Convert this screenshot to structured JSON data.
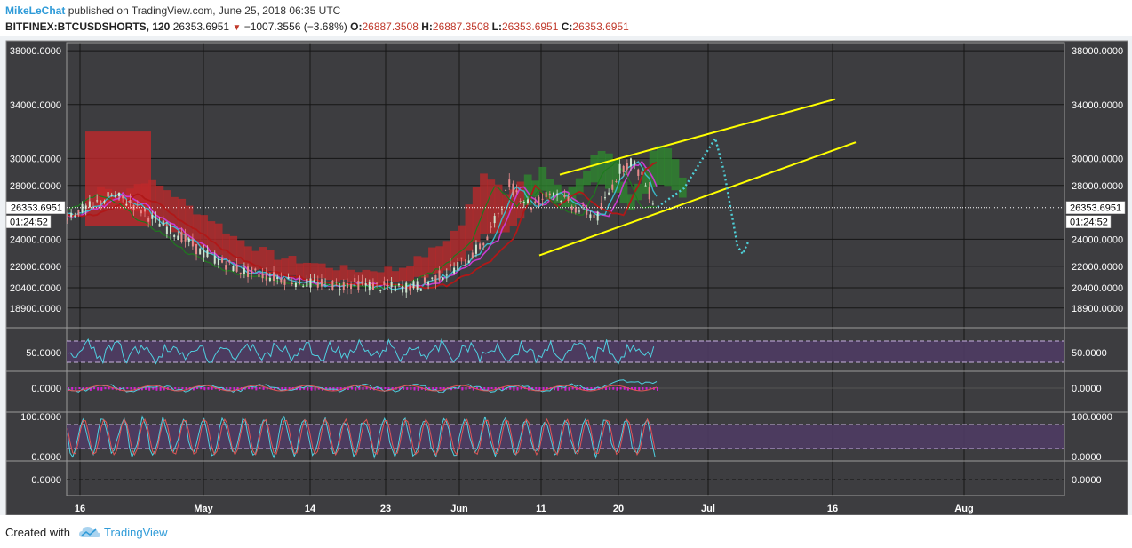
{
  "header": {
    "author": "MikeLeChat",
    "published_text": "published on TradingView.com, June 25, 2018 06:35 UTC",
    "symbol": "BITFINEX:BTCUSDSHORTS, 120",
    "last": "26353.6951",
    "change": "−1007.3556 (−3.68%)",
    "o_label": "O:",
    "o_value": "26887.3508",
    "h_label": "H:",
    "h_value": "26887.3508",
    "l_label": "L:",
    "l_value": "26353.6951",
    "c_label": "C:",
    "c_value": "26353.6951"
  },
  "footer": {
    "created_with": "Created with",
    "brand": "TradingView"
  },
  "colors": {
    "background": "#3d3d40",
    "grid": "#161616",
    "yellow": "#ffff00",
    "cyan_dotted": "#4fd0d8",
    "kumo_red": "#c0282a",
    "kumo_green": "#2e8b2e",
    "rsi_band": "#4e3b63"
  },
  "chart_data": {
    "type": "line",
    "x_tick_labels": [
      "16",
      "May",
      "14",
      "23",
      "Jun",
      "11",
      "20",
      "Jul",
      "16",
      "Aug"
    ],
    "price_axis_labels": [
      "38000.0000",
      "34000.0000",
      "30000.0000",
      "28000.0000",
      "24000.0000",
      "22000.0000",
      "20400.0000",
      "18900.0000"
    ],
    "price_range": [
      17500,
      38600
    ],
    "current_price_label": "26353.6951",
    "current_price": 26353.6951,
    "countdown_label": "01:24:52",
    "series": [
      {
        "x": [
          0,
          3,
          6,
          9,
          12,
          15,
          18,
          21,
          24,
          27,
          30,
          33,
          36,
          39,
          42,
          45,
          48,
          51,
          54,
          57,
          60,
          63,
          66,
          69,
          72,
          75,
          76.5,
          78,
          79,
          80
        ],
        "values": [
          25800,
          26400,
          27300,
          26600,
          25300,
          24400,
          23100,
          22300,
          21600,
          21300,
          21000,
          20700,
          20600,
          20700,
          20500,
          20400,
          20600,
          21400,
          22400,
          24000,
          28000,
          26500,
          27600,
          26300,
          25700,
          29200,
          29800,
          28700,
          27400,
          26400
        ]
      }
    ],
    "wedge_upper": [
      [
        1,
        28800
      ],
      [
        4,
        34400
      ]
    ],
    "wedge_lower": [
      [
        1,
        22800
      ],
      [
        4,
        31200
      ]
    ],
    "projection_path": [
      [
        0,
        26400
      ],
      [
        1,
        27800
      ],
      [
        2,
        31500
      ],
      [
        3,
        29000
      ],
      [
        4,
        23500
      ],
      [
        5,
        22900
      ],
      [
        6,
        23800
      ]
    ],
    "indicators": [
      {
        "label": "50.0000",
        "level": 50
      },
      {
        "label": "0.0000",
        "level": 0
      },
      {
        "label": "100.0000",
        "level": 100
      },
      {
        "label": "0.0000",
        "level": 0
      },
      {
        "label": "0.0000",
        "level": 0
      }
    ]
  }
}
